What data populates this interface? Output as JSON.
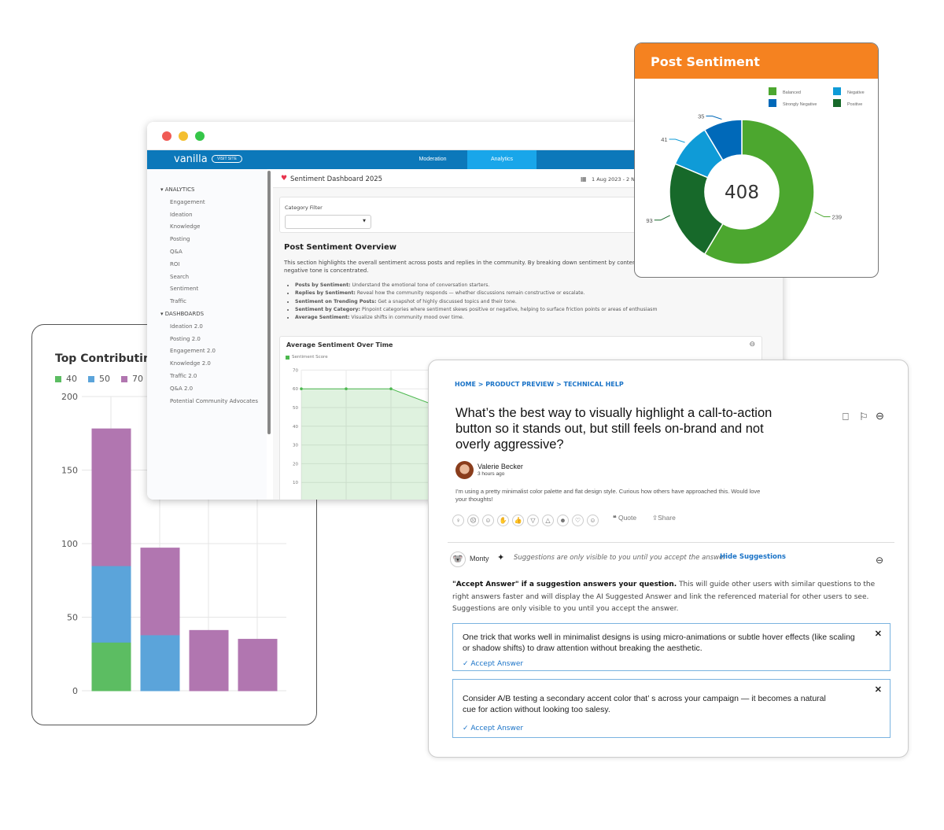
{
  "bar_card": {
    "title": "Top Contributing M",
    "chart_data": {
      "type": "bar",
      "stacked": true,
      "title": "Top Contributing M",
      "ylim": [
        0,
        200
      ],
      "yticks": [
        "200",
        "150",
        "100",
        "50",
        "0"
      ],
      "grid": true,
      "legend": "top-left",
      "series": [
        {
          "name": "40",
          "color": "#5cbd62",
          "values": [
            33,
            0,
            0,
            0
          ]
        },
        {
          "name": "50",
          "color": "#5ba4da",
          "values": [
            52,
            38,
            0,
            0
          ]
        },
        {
          "name": "70",
          "color": "#b176b0",
          "values": [
            93,
            59,
            41,
            35
          ]
        }
      ]
    }
  },
  "dashboard": {
    "logo": "vanilla",
    "visit_site": "VISIT SITE",
    "nav": [
      "Moderation",
      "Analytics"
    ],
    "active_nav": "Analytics",
    "sidebar": {
      "analytics_header": "ANALYTICS",
      "analytics_items": [
        "Engagement",
        "Ideation",
        "Knowledge",
        "Posting",
        "Q&A",
        "ROI",
        "Search",
        "Sentiment",
        "Traffic"
      ],
      "dashboards_header": "DASHBOARDS",
      "dashboard_items": [
        "Ideation 2.0",
        "Posting 2.0",
        "Engagement 2.0",
        "Knowledge 2.0",
        "Traffic 2.0",
        "Q&A 2.0",
        "Potential Community Advocates"
      ]
    },
    "title": "Sentiment Dashboard 2025",
    "date_range": "1 Aug 2023  -  2 N",
    "category_filter_label": "Category Filter",
    "overview_title": "Post Sentiment Overview",
    "overview_text": "This section highlights the overall sentiment across posts and replies in the community. By breaking down sentiment by content type (origina help identify where positive or negative tone is concentrated.",
    "bullets": [
      {
        "b": "Posts by Sentiment:",
        "t": " Understand the emotional tone of conversation starters."
      },
      {
        "b": "Replies by Sentiment:",
        "t": " Reveal how the community responds — whether discussions remain constructive or escalate."
      },
      {
        "b": "Sentiment on Trending Posts:",
        "t": " Get a snapshot of highly discussed topics and their tone."
      },
      {
        "b": "Sentiment by Category:",
        "t": " Pinpoint categories where sentiment skews positive or negative, helping to surface friction points or areas of enthusiasm"
      },
      {
        "b": "Average Sentiment:",
        "t": " Visualize shifts in community mood over time."
      }
    ],
    "line_chart": {
      "title": "Average Sentiment Over Time",
      "chart_data": {
        "type": "area",
        "title": "Average Sentiment Over Time",
        "ylim": [
          0,
          70
        ],
        "yticks": [
          "70",
          "60",
          "50",
          "40",
          "30",
          "20",
          "10"
        ],
        "series": [
          {
            "name": "Sentiment Score",
            "color": "#4cb84f",
            "values": [
              60,
              60,
              60,
              51
            ]
          }
        ],
        "legend": "top-left",
        "grid": true
      }
    }
  },
  "donut_card": {
    "title": "Post Sentiment",
    "total": "408",
    "chart_data": {
      "type": "pie",
      "donut": true,
      "center_label": "408",
      "legend": "top-right",
      "slices": [
        {
          "name": "Balanced",
          "value": 239,
          "color": "#4ca72f"
        },
        {
          "name": "Positive",
          "value": 93,
          "color": "#17692a"
        },
        {
          "name": "Negative",
          "value": 41,
          "color": "#0f9bd7"
        },
        {
          "name": "Strongly Negative",
          "value": 35,
          "color": "#0069b9"
        }
      ],
      "legend_order": [
        "Balanced",
        "Negative",
        "Strongly Negative",
        "Positive"
      ]
    }
  },
  "question": {
    "breadcrumb": "HOME > PRODUCT PREVIEW > TECHNICAL HELP",
    "title": "What’s the best way to visually highlight a call-to-action button so it stands out, but still feels on-brand and not overly aggressive?",
    "author": "Valerie Becker",
    "time": "3 hours ago",
    "body": "I'm using a pretty minimalist color palette and flat design style. Curious how others have approached this. Would love your thoughts!",
    "quote": "Quote",
    "share": "Share",
    "assistant_name": "Monty",
    "suggestion_note": "Suggestions are only visible to you until you accept the answer",
    "hide_suggestions": "Hide Suggestions",
    "intro_bold": "\"Accept Answer\" if a suggestion answers your question.",
    "intro_text": "  This will guide other users with similar questions to the right answers faster and will display the AI Suggested Answer and link the referenced material for other users to see. Suggestions are only visible to you until you accept the answer.",
    "suggestions": [
      {
        "text": "One trick that works well in minimalist designs is using micro-animations or subtle hover effects (like scaling or shadow shifts) to draw attention without breaking the aesthetic.",
        "accept": "Accept Answer"
      },
      {
        "text": "Consider A/B testing a secondary accent color that’ s across your campaign — it becomes a natural cue for action without looking too salesy.",
        "accept": "Accept Answer"
      }
    ]
  }
}
